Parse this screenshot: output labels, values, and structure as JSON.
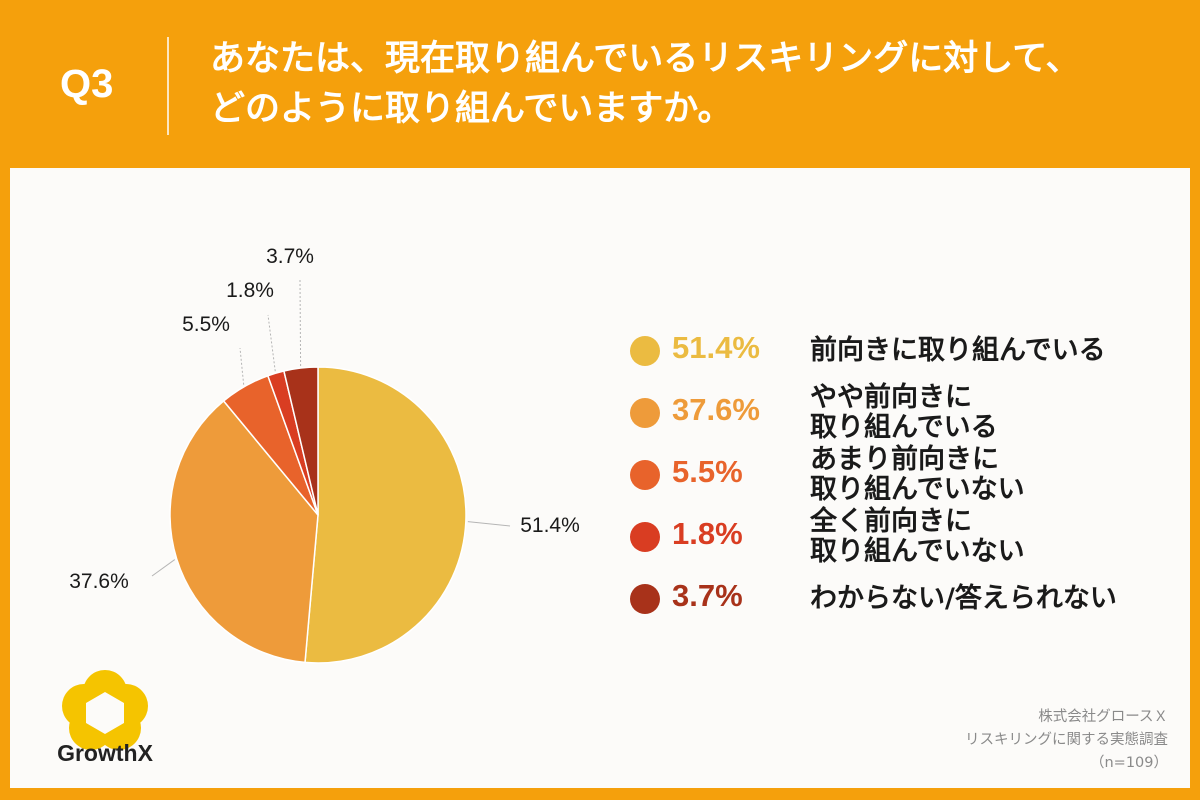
{
  "header": {
    "question_label": "Q3",
    "title_line1": "あなたは、現在取り組んでいるリスキリングに対して、",
    "title_line2": "どのように取り組んでいますか。"
  },
  "colors": {
    "background": "#F5A00C",
    "panel": "#FCFBF9"
  },
  "chart_data": {
    "type": "pie",
    "title": "",
    "slices": [
      {
        "label": "前向きに取り組んでいる",
        "value": 51.4,
        "display": "51.4%",
        "color": "#EBBB41"
      },
      {
        "label": "やや前向きに\n取り組んでいる",
        "value": 37.6,
        "display": "37.6%",
        "color": "#EE9B3A"
      },
      {
        "label": "あまり前向きに\n取り組んでいない",
        "value": 5.5,
        "display": "5.5%",
        "color": "#E8632B"
      },
      {
        "label": "全く前向きに\n取り組んでいない",
        "value": 1.8,
        "display": "1.8%",
        "color": "#D93D22"
      },
      {
        "label": "わからない/答えられない",
        "value": 3.7,
        "display": "3.7%",
        "color": "#A8321A"
      }
    ],
    "legend_position": "right"
  },
  "logo": {
    "text": "GrowthX",
    "icon": "growthx-flower-icon"
  },
  "source": {
    "line1": "株式会社グロースＸ",
    "line2": "リスキリングに関する実態調査",
    "line3": "（n=109）"
  }
}
